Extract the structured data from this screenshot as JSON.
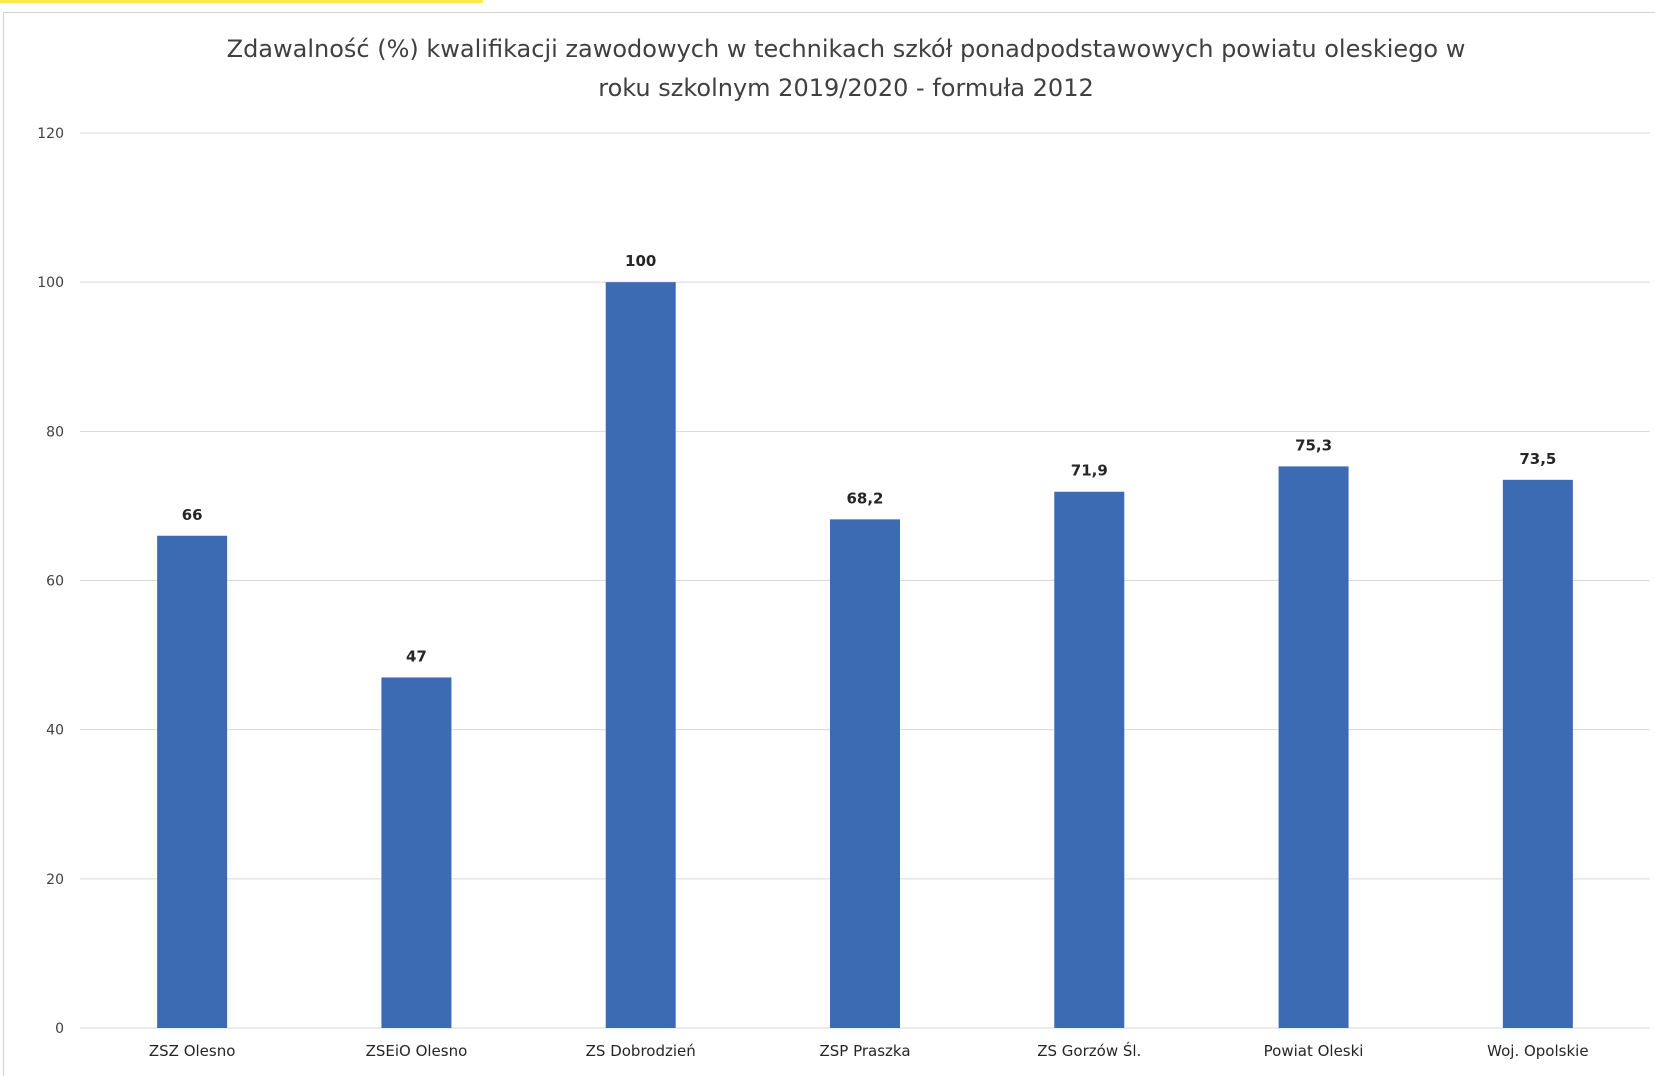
{
  "colors": {
    "bar": "#3d6bb3",
    "gridline": "#d9d9d9",
    "frame_border": "#d0d0d0",
    "highlight_strip": "#ffe84a"
  },
  "chart_data": {
    "type": "bar",
    "title_lines": [
      "Zdawalność (%) kwalifikacji zawodowych w technikach szkół ponadpodstawowych powiatu oleskiego w",
      "roku szkolnym 2019/2020 - formuła 2012"
    ],
    "categories": [
      "ZSZ Olesno",
      "ZSEiO Olesno",
      "ZS Dobrodzień",
      "ZSP Praszka",
      "ZS Gorzów Śl.",
      "Powiat Oleski",
      "Woj. Opolskie"
    ],
    "values": [
      66,
      47,
      100,
      68.2,
      71.9,
      75.3,
      73.5
    ],
    "value_labels": [
      "66",
      "47",
      "100",
      "68,2",
      "71,9",
      "75,3",
      "73,5"
    ],
    "y_ticks": [
      "0",
      "20",
      "40",
      "60",
      "80",
      "100",
      "120"
    ],
    "ylim": [
      0,
      120
    ],
    "grid": true,
    "legend": false
  }
}
